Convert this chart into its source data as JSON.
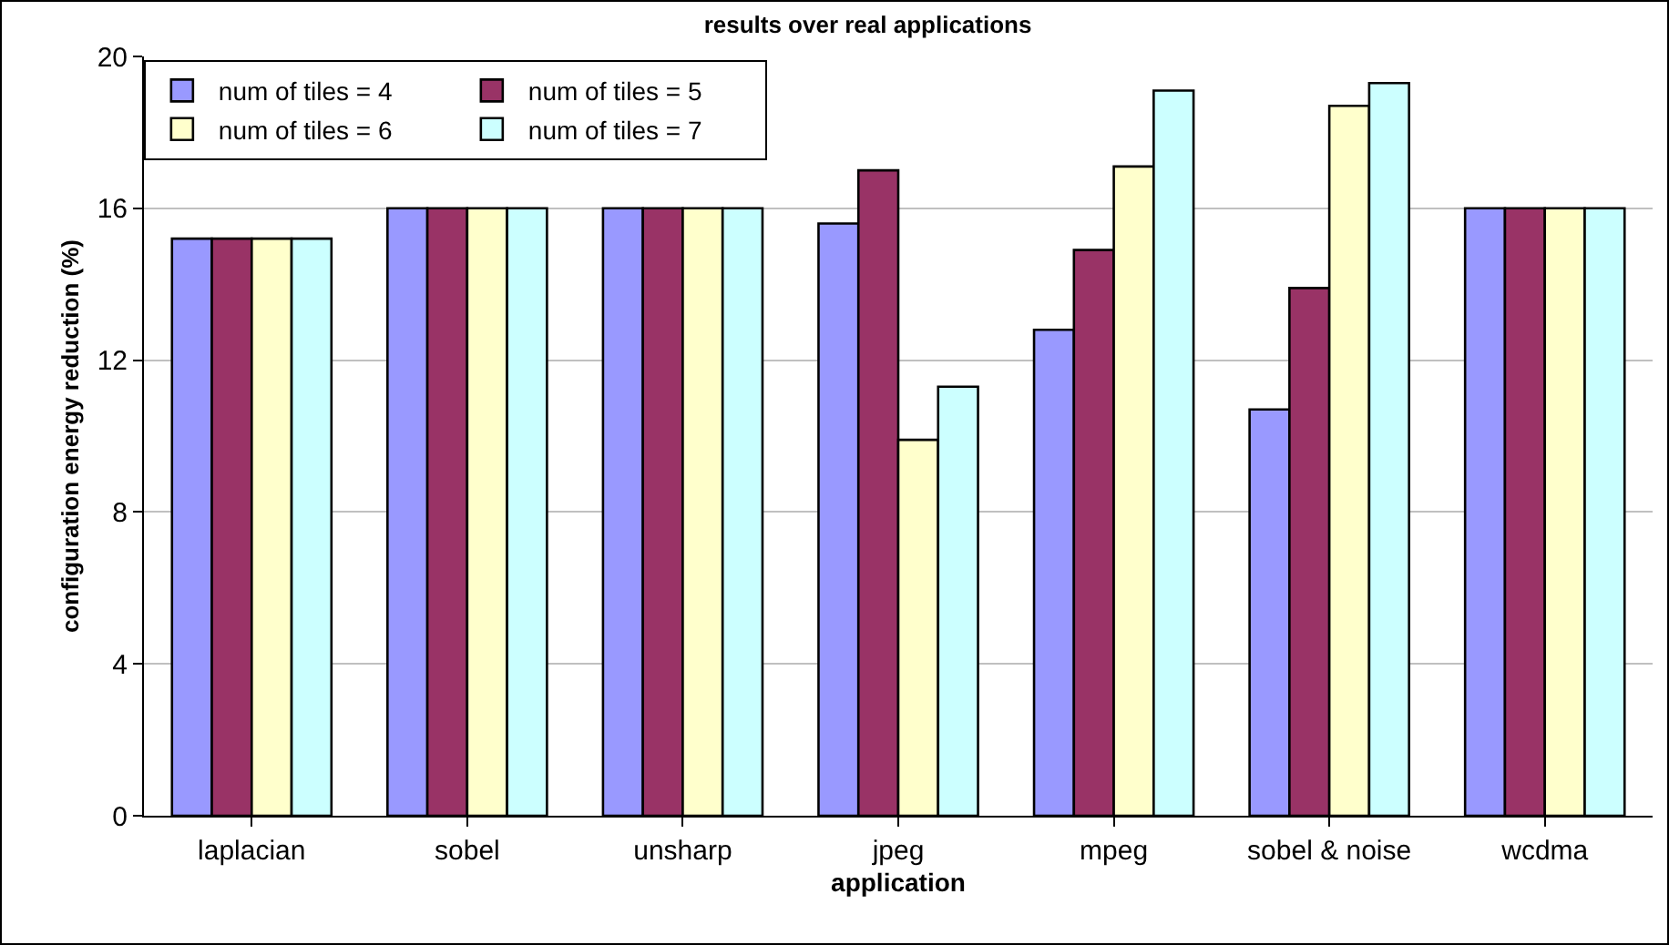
{
  "chart_data": {
    "type": "bar",
    "title": "results over real applications",
    "xlabel": "application",
    "ylabel": "configuration energy reduction (%)",
    "categories": [
      "laplacian",
      "sobel",
      "unsharp",
      "jpeg",
      "mpeg",
      "sobel & noise",
      "wcdma"
    ],
    "series": [
      {
        "name": "num of tiles = 4",
        "color": "#9999ff",
        "values": [
          15.2,
          16,
          16,
          15.6,
          12.8,
          10.7,
          16
        ]
      },
      {
        "name": "num of tiles = 5",
        "color": "#993366",
        "values": [
          15.2,
          16,
          16,
          17,
          14.9,
          13.9,
          16
        ]
      },
      {
        "name": "num of tiles = 6",
        "color": "#ffffcc",
        "values": [
          15.2,
          16,
          16,
          9.9,
          17.1,
          18.7,
          16
        ]
      },
      {
        "name": "num of tiles = 7",
        "color": "#ccffff",
        "values": [
          15.2,
          16,
          16,
          11.3,
          19.1,
          19.3,
          16
        ]
      }
    ],
    "ylim": [
      0,
      20
    ],
    "yticks": [
      0,
      4,
      8,
      12,
      16,
      20
    ],
    "grid": "y",
    "legend": "top left"
  }
}
